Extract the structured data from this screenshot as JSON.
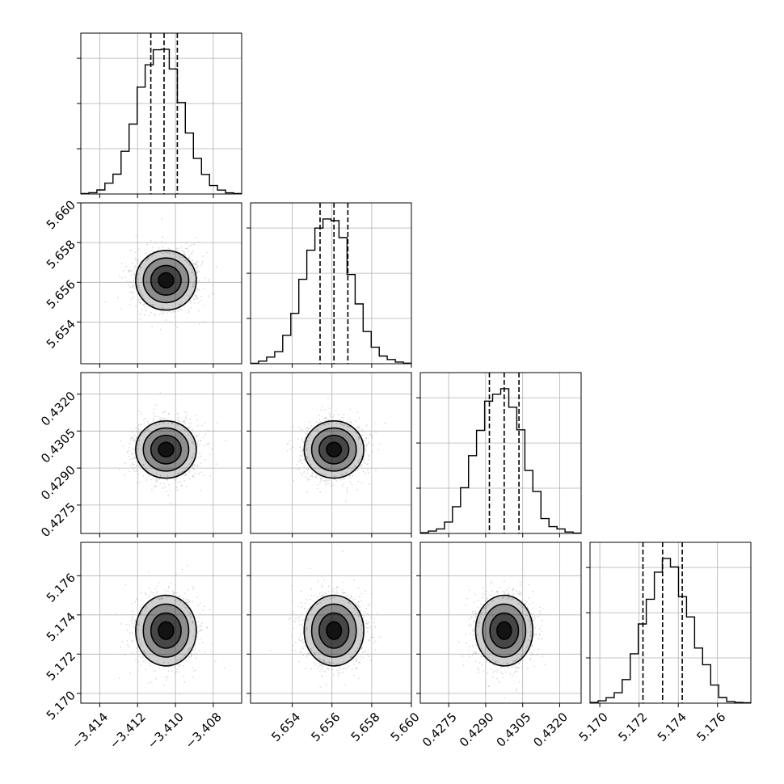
{
  "chart_data": {
    "type": "corner",
    "title": "",
    "parameters": [
      {
        "label": "",
        "range": [
          -3.415,
          -3.4065
        ],
        "ticks": [
          -3.414,
          -3.412,
          -3.41,
          -3.408
        ],
        "tick_labels": [
          "−3.414",
          "−3.412",
          "−3.410",
          "−3.408"
        ],
        "mean": -3.4105,
        "sigma": 0.0008,
        "quantiles": [
          -3.4113,
          -3.4106,
          -3.4099
        ]
      },
      {
        "label": "",
        "range": [
          5.6519,
          5.66
        ],
        "ticks": [
          5.654,
          5.656,
          5.658,
          5.66
        ],
        "tick_labels": [
          "5.654",
          "5.656",
          "5.658",
          "5.660"
        ],
        "mean": 5.6561,
        "sigma": 0.00075,
        "quantiles": [
          5.6554,
          5.6561,
          5.6568
        ]
      },
      {
        "label": "",
        "range": [
          0.42635,
          0.43287
        ],
        "ticks": [
          0.4275,
          0.429,
          0.4305,
          0.432
        ],
        "tick_labels": [
          "0.4275",
          "0.4290",
          "0.4305",
          "0.4320"
        ],
        "mean": 0.42975,
        "sigma": 0.00058,
        "quantiles": [
          0.42915,
          0.42975,
          0.43035
        ]
      },
      {
        "label": "",
        "range": [
          5.1695,
          5.1777
        ],
        "ticks": [
          5.17,
          5.172,
          5.174,
          5.176
        ],
        "tick_labels": [
          "5.170",
          "5.172",
          "5.174",
          "5.176"
        ],
        "mean": 5.1732,
        "sigma": 0.0009,
        "quantiles": [
          5.1722,
          5.1732,
          5.1742
        ]
      }
    ],
    "histograms": [
      {
        "param": 0,
        "bins": 20,
        "values": [
          0.3,
          0.9,
          2.8,
          7.5,
          13.7,
          29.5,
          48.3,
          73.8,
          89.2,
          99.6,
          100.0,
          86.4,
          63.2,
          42.1,
          24.6,
          13.5,
          5.8,
          2.7,
          0.8,
          0.3
        ]
      },
      {
        "param": 1,
        "bins": 20,
        "values": [
          0.3,
          1.8,
          4.6,
          8.3,
          19.6,
          34.8,
          58.3,
          78.4,
          93.7,
          100.0,
          98.8,
          87.1,
          61.6,
          41.3,
          22.2,
          11.4,
          5.3,
          2.9,
          1.2,
          0.4
        ]
      },
      {
        "param": 2,
        "bins": 20,
        "values": [
          0.5,
          1.6,
          3.1,
          7.9,
          18.5,
          31.6,
          53.7,
          71.2,
          91.4,
          96.2,
          100.0,
          87.2,
          71.6,
          43.5,
          28.9,
          10.3,
          4.7,
          3.1,
          1.0,
          0.2
        ]
      },
      {
        "param": 3,
        "bins": 20,
        "values": [
          0.5,
          1.6,
          3.8,
          7.2,
          16.3,
          34.1,
          54.7,
          71.8,
          90.5,
          100.0,
          94.1,
          73.6,
          59.6,
          38.1,
          26.6,
          12.5,
          3.9,
          1.2,
          0.5,
          0.3
        ]
      }
    ],
    "pairs": [
      {
        "x": 0,
        "y": 1,
        "correlation": 0.0
      },
      {
        "x": 0,
        "y": 2,
        "correlation": 0.0
      },
      {
        "x": 1,
        "y": 2,
        "correlation": 0.0
      },
      {
        "x": 0,
        "y": 3,
        "correlation": 0.0
      },
      {
        "x": 1,
        "y": 3,
        "correlation": 0.0
      },
      {
        "x": 2,
        "y": 3,
        "correlation": 0.0
      }
    ],
    "contour_levels_sigma": [
      0.5,
      1.0,
      1.5,
      2.0
    ],
    "colors": {
      "line": "#000000",
      "grid": "#b0b0b0",
      "points": "#9a9a9a",
      "density": "#000000"
    },
    "grid": true
  }
}
